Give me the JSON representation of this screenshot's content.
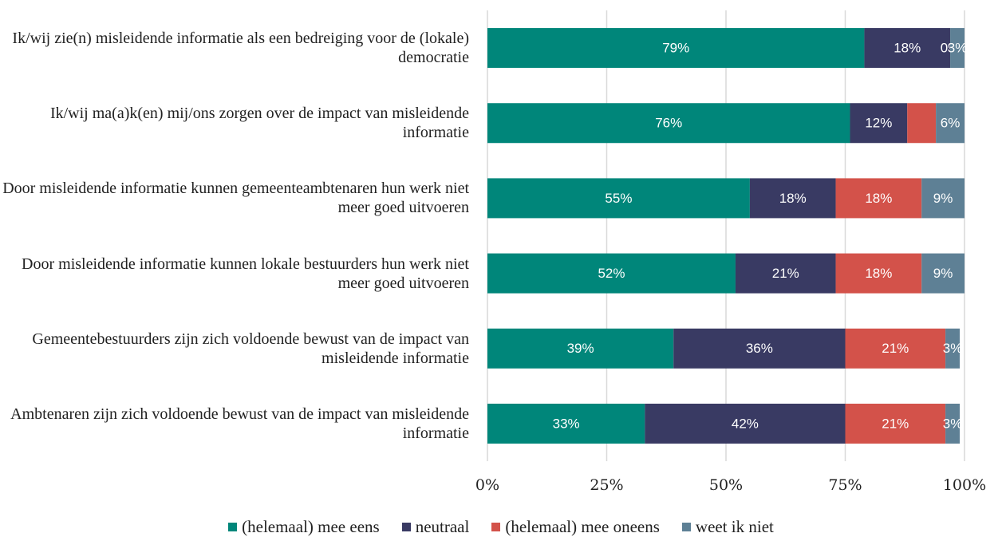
{
  "chart_data": {
    "type": "stacked_barh",
    "categories": [
      "Ik/wij zie(n) misleidende informatie als een bedreiging voor de (lokale) democratie",
      "Ik/wij ma(a)k(en) mij/ons zorgen over de impact van misleidende informatie",
      "Door misleidende informatie kunnen gemeenteambtenaren hun werk niet meer goed uitvoeren",
      "Door misleidende informatie kunnen lokale bestuurders hun werk niet meer goed uitvoeren",
      "Gemeentebestuurders zijn zich voldoende bewust van de impact van misleidende informatie",
      "Ambtenaren zijn zich voldoende bewust van de impact van misleidende informatie"
    ],
    "series": [
      {
        "name": "(helemaal) mee eens",
        "color": "#00867a",
        "values": [
          79,
          76,
          55,
          52,
          39,
          33
        ],
        "value_labels": [
          "79%",
          "76%",
          "55%",
          "52%",
          "39%",
          "33%"
        ]
      },
      {
        "name": "neutraal",
        "color": "#393a63",
        "values": [
          18,
          12,
          18,
          21,
          36,
          42
        ],
        "value_labels": [
          "18%",
          "12%",
          "18%",
          "21%",
          "36%",
          "42%"
        ]
      },
      {
        "name": "(helemaal) mee oneens",
        "color": "#d3524a",
        "values": [
          0,
          6,
          18,
          18,
          21,
          21
        ],
        "value_labels": [
          "0%",
          null,
          "18%",
          "18%",
          "21%",
          "21%"
        ]
      },
      {
        "name": "weet ik niet",
        "color": "#5e8095",
        "values": [
          3,
          6,
          9,
          9,
          3,
          3
        ],
        "value_labels": [
          "3%",
          "6%",
          "9%",
          "9%",
          "3%",
          "3%"
        ]
      }
    ],
    "xlim": [
      0,
      100
    ],
    "xticks": [
      {
        "value": 0,
        "label": "0%"
      },
      {
        "value": 25,
        "label": "25%"
      },
      {
        "value": 50,
        "label": "50%"
      },
      {
        "value": 75,
        "label": "75%"
      },
      {
        "value": 100,
        "label": "100%"
      }
    ],
    "grid": true,
    "legend": "bottom"
  }
}
